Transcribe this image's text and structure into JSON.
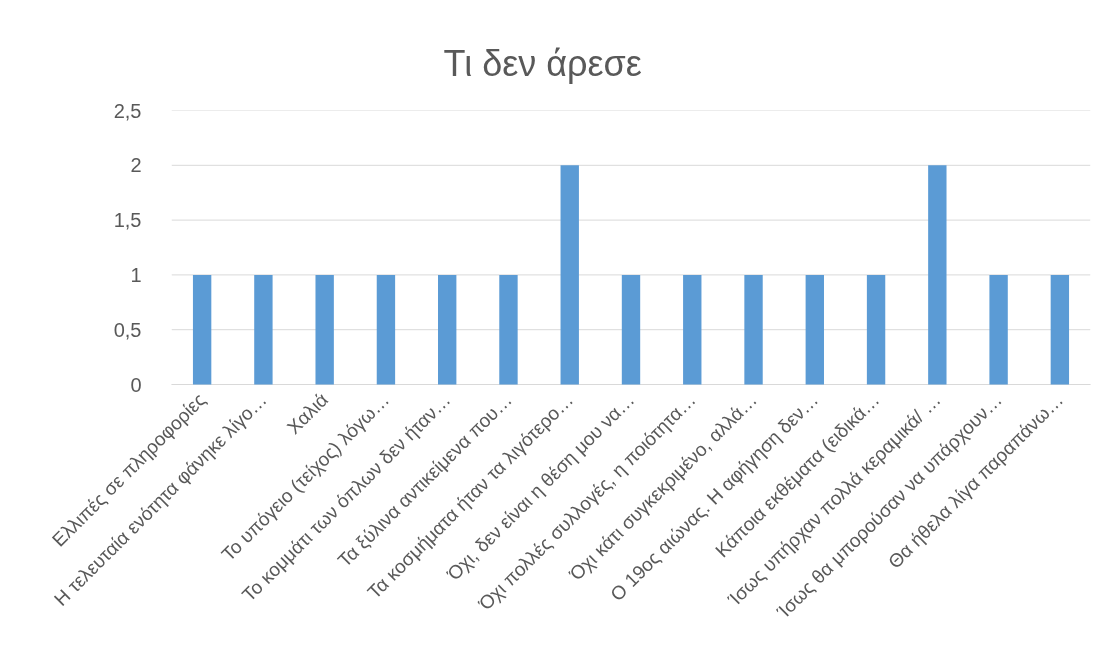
{
  "chart_data": {
    "type": "bar",
    "title": "Τι δεν άρεσε",
    "categories": [
      "Ελλιπές σε πληροφορίες",
      "Η τελευταία ενότητα φάνηκε λίγο…",
      "Χαλιά",
      "Το υπόγειο (τείχος) λόγω…",
      "Το κομμάτι των όπλων δεν ήταν…",
      "Τα ξύλινα αντικείμενα που…",
      "Τα κοσμήματα ήταν τα λιγότερο…",
      "Όχι, δεν είναι η θέση μου να…",
      "Όχι πολλές συλλογές, η ποιότητα…",
      "Όχι κάτι συγκεκριμένο, αλλά…",
      "Ο 19ος αιώνας. Η αφήγηση δεν…",
      "Κάποια εκθέματα (ειδικά…",
      "Ίσως υπήρχαν πολλά κεραμικά/ …",
      "Ίσως θα μπορούσαν να υπάρχουν…",
      "Θα ήθελα λίγα παραπάνω…"
    ],
    "values": [
      1,
      1,
      1,
      1,
      1,
      1,
      2,
      1,
      1,
      1,
      1,
      1,
      2,
      1,
      1
    ],
    "color": "#5b9bd5",
    "ylim": [
      0,
      2.5
    ],
    "yticks": [
      0,
      {
        "value": 0.5,
        "label": "0,5"
      },
      1,
      {
        "value": 1.5,
        "label": "1,5"
      },
      2,
      {
        "value": 2.5,
        "label": "2,5"
      }
    ],
    "grid": "y"
  }
}
